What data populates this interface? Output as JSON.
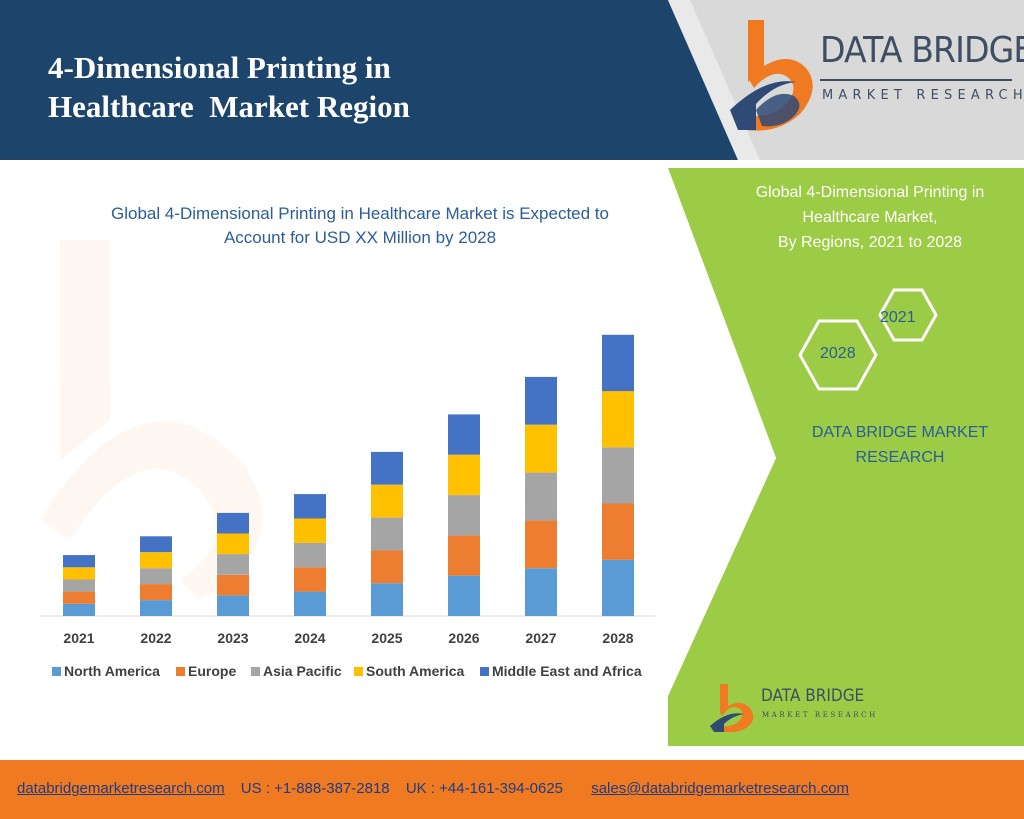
{
  "header": {
    "title_line1": "4-Dimensional Printing in",
    "title_line2": "Healthcare  Market Region",
    "logo_text": "DATA BRIDGE",
    "logo_subtext": "MARKET RESEARCH"
  },
  "colors": {
    "header_blue": "#1d446b",
    "green_panel": "#9ccb45",
    "orange_footer": "#ef7a22",
    "title_blue": "#2b5d99"
  },
  "chart_data": {
    "type": "bar",
    "stacked": true,
    "title_line1": "Global 4-Dimensional Printing in Healthcare Market is Expected to",
    "title_line2": "Account for USD XX Million by 2028",
    "categories": [
      "2021",
      "2022",
      "2023",
      "2024",
      "2025",
      "2026",
      "2027",
      "2028"
    ],
    "series": [
      {
        "name": "North America",
        "color": "#5b9bd5",
        "values": [
          13,
          17,
          22,
          26,
          35,
          43,
          51,
          60
        ]
      },
      {
        "name": "Europe",
        "color": "#ed7d31",
        "values": [
          13,
          17,
          22,
          26,
          35,
          43,
          51,
          60
        ]
      },
      {
        "name": "Asia Pacific",
        "color": "#a5a5a5",
        "values": [
          13,
          17,
          22,
          26,
          35,
          43,
          51,
          60
        ]
      },
      {
        "name": "South America",
        "color": "#ffc000",
        "values": [
          13,
          17,
          22,
          26,
          35,
          43,
          51,
          60
        ]
      },
      {
        "name": "Middle East and Africa",
        "color": "#4472c4",
        "values": [
          13,
          17,
          22,
          26,
          35,
          43,
          51,
          60
        ]
      }
    ],
    "ylim": [
      0,
      320
    ],
    "grid": false,
    "legend": "bottom"
  },
  "panel": {
    "heading_line1": "Global 4-Dimensional Printing in",
    "heading_line2": "Healthcare Market,",
    "heading_line3": "By Regions, 2021 to 2028",
    "hex_2021": "2021",
    "hex_2028": "2028",
    "brand_line1": "DATA BRIDGE MARKET",
    "brand_line2": "RESEARCH",
    "small_logo_text": "DATA BRIDGE",
    "small_logo_subtext": "MARKET RESEARCH"
  },
  "footer": {
    "website": "databridgemarketresearch.com",
    "us_phone": "US : +1-888-387-2818",
    "uk_phone": "UK : +44-161-394-0625",
    "email": "sales@databridgemarketresearch.com"
  }
}
